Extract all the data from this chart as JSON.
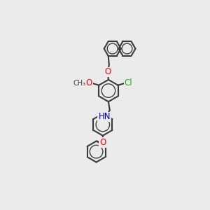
{
  "bg_color": "#ebebeb",
  "bond_color": "#3a3a3a",
  "bond_width": 1.5,
  "atom_colors": {
    "O": "#ff0000",
    "N": "#0000cd",
    "Cl": "#22aa22",
    "C": "#3a3a3a"
  }
}
